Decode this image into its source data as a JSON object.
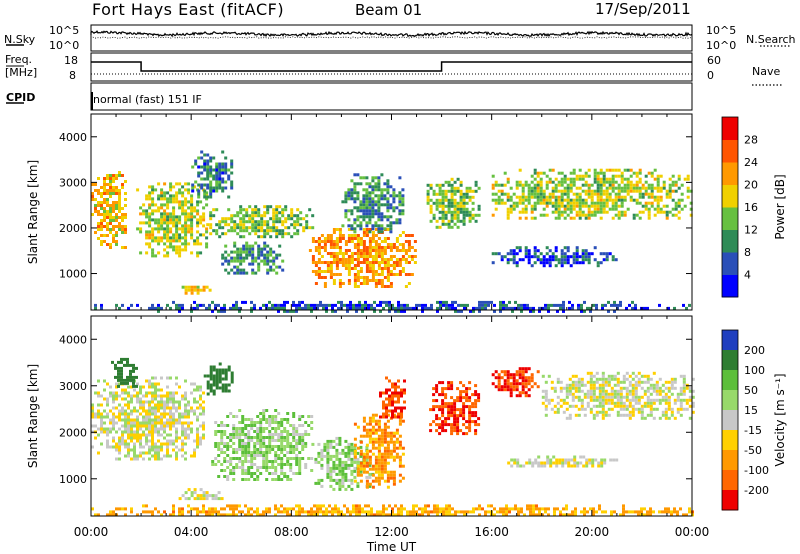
{
  "header": {
    "title": "Fort Hays East (fitACF)",
    "beam": "Beam 01",
    "date": "17/Sep/2011"
  },
  "strip": {
    "nsky_label": "N.Sky",
    "nsearch_label": "N.Search",
    "n_ticks": [
      "10^5",
      "10^0"
    ],
    "freq_label": "Freq.",
    "freq_unit": "[MHz]",
    "freq_ticks": [
      "18",
      "8"
    ],
    "nave_label": "Nave",
    "nave_ticks": [
      "60",
      "0"
    ],
    "cpid_label": "CPID",
    "cpid_text": "normal (fast) 151 IF"
  },
  "chart_data": [
    {
      "type": "heatmap",
      "name": "power",
      "ylabel": "Slant Range [km]",
      "xlabel": "Time UT",
      "x_ticks": [
        "00:00",
        "04:00",
        "08:00",
        "12:00",
        "16:00",
        "20:00",
        "00:00"
      ],
      "xlim_hours": [
        0,
        24
      ],
      "y_ticks": [
        1000,
        2000,
        3000,
        4000
      ],
      "ylim": [
        200,
        4500
      ],
      "colorbar": {
        "label": "Power [dB]",
        "ticks": [
          4,
          8,
          12,
          16,
          20,
          24,
          28
        ],
        "range": [
          0,
          32
        ],
        "colors": [
          "#0000ff",
          "#2a4fb8",
          "#2e8b57",
          "#66c040",
          "#f0d000",
          "#ff9900",
          "#ff5500",
          "#ee0000"
        ]
      },
      "echo_regions": [
        {
          "t": [
            0.0,
            1.4
          ],
          "r": [
            1550,
            3250
          ],
          "level": 20
        },
        {
          "t": [
            1.8,
            4.6
          ],
          "r": [
            1400,
            3000
          ],
          "level": 16
        },
        {
          "t": [
            4.0,
            5.6
          ],
          "r": [
            2700,
            3700
          ],
          "level": 8
        },
        {
          "t": [
            3.5,
            4.8
          ],
          "r": [
            600,
            800
          ],
          "level": 18
        },
        {
          "t": [
            4.6,
            8.8
          ],
          "r": [
            1800,
            2500
          ],
          "level": 14
        },
        {
          "t": [
            5.2,
            7.6
          ],
          "r": [
            1000,
            1700
          ],
          "level": 10
        },
        {
          "t": [
            8.7,
            13.0
          ],
          "r": [
            700,
            2000
          ],
          "level": 22
        },
        {
          "t": [
            10.0,
            12.5
          ],
          "r": [
            1900,
            3200
          ],
          "level": 10
        },
        {
          "t": [
            13.4,
            15.5
          ],
          "r": [
            2000,
            3100
          ],
          "level": 14
        },
        {
          "t": [
            16.0,
            21.0
          ],
          "r": [
            1200,
            1600
          ],
          "level": 6
        },
        {
          "t": [
            16.0,
            24.0
          ],
          "r": [
            2200,
            3300
          ],
          "level": 16
        },
        {
          "t": [
            0.0,
            24.0
          ],
          "r": [
            200,
            400
          ],
          "level": 6
        }
      ]
    },
    {
      "type": "heatmap",
      "name": "velocity",
      "ylabel": "Slant Range [km]",
      "xlabel": "Time UT",
      "x_ticks": [
        "00:00",
        "04:00",
        "08:00",
        "12:00",
        "16:00",
        "20:00",
        "00:00"
      ],
      "xlim_hours": [
        0,
        24
      ],
      "y_ticks": [
        1000,
        2000,
        3000,
        4000
      ],
      "ylim": [
        200,
        4500
      ],
      "colorbar": {
        "label": "Velocity [m s⁻¹]",
        "ticks": [
          200,
          100,
          50,
          15,
          -15,
          -50,
          -100,
          -200
        ],
        "colors": [
          "#1f3fbf",
          "#2e7d32",
          "#5cbf3a",
          "#98d96a",
          "#c8c8c8",
          "#ffd000",
          "#ff9900",
          "#ff6600",
          "#ee0000"
        ]
      },
      "echo_regions": [
        {
          "t": [
            0.0,
            4.5
          ],
          "r": [
            1400,
            3200
          ],
          "v": 0
        },
        {
          "t": [
            0.8,
            1.8
          ],
          "r": [
            3000,
            3600
          ],
          "v": 150
        },
        {
          "t": [
            4.5,
            5.6
          ],
          "r": [
            2800,
            3500
          ],
          "v": 150
        },
        {
          "t": [
            3.5,
            5.2
          ],
          "r": [
            550,
            800
          ],
          "v": 0
        },
        {
          "t": [
            4.8,
            8.8
          ],
          "r": [
            1000,
            2500
          ],
          "v": 40
        },
        {
          "t": [
            8.8,
            11.2
          ],
          "r": [
            800,
            1900
          ],
          "v": 40
        },
        {
          "t": [
            10.5,
            12.5
          ],
          "r": [
            800,
            2400
          ],
          "v": -80
        },
        {
          "t": [
            11.5,
            12.5
          ],
          "r": [
            2300,
            3200
          ],
          "v": -200
        },
        {
          "t": [
            13.5,
            15.5
          ],
          "r": [
            2000,
            3100
          ],
          "v": -200
        },
        {
          "t": [
            16.0,
            17.8
          ],
          "r": [
            2800,
            3400
          ],
          "v": -200
        },
        {
          "t": [
            16.5,
            21.0
          ],
          "r": [
            1250,
            1500
          ],
          "v": 0
        },
        {
          "t": [
            18.0,
            24.0
          ],
          "r": [
            2300,
            3300
          ],
          "v": 0
        },
        {
          "t": [
            0.0,
            24.0
          ],
          "r": [
            200,
            450
          ],
          "v": -60
        }
      ]
    }
  ]
}
